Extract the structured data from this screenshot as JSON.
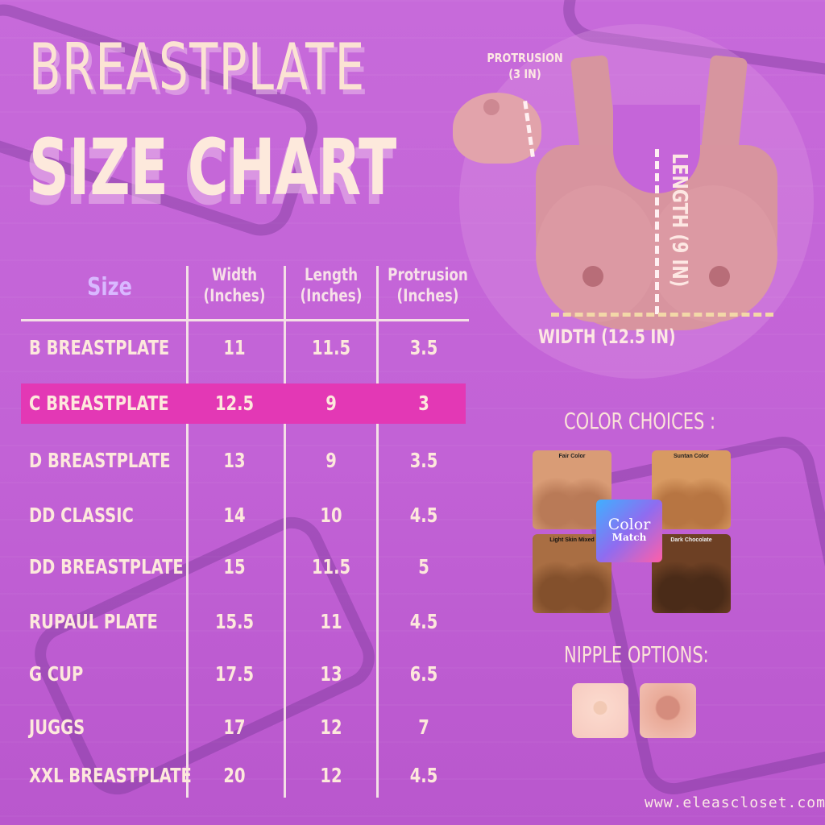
{
  "title": {
    "line1": "BREASTPLATE",
    "line2": "SIZE CHART"
  },
  "table": {
    "headers": {
      "size": "Size",
      "width": "Width (Inches)",
      "length": "Length (Inches)",
      "protrusion": "Protrusion (Inches)"
    },
    "rows": [
      {
        "name": "B BREASTPLATE",
        "width": "11",
        "length": "11.5",
        "protrusion": "3.5"
      },
      {
        "name": "C BREASTPLATE",
        "width": "12.5",
        "length": "9",
        "protrusion": "3",
        "highlight": true
      },
      {
        "name": "D BREASTPLATE",
        "width": "13",
        "length": "9",
        "protrusion": "3.5"
      },
      {
        "name": "DD CLASSIC",
        "width": "14",
        "length": "10",
        "protrusion": "4.5"
      },
      {
        "name": "DD BREASTPLATE",
        "width": "15",
        "length": "11.5",
        "protrusion": "5"
      },
      {
        "name": "RUPAUL PLATE",
        "width": "15.5",
        "length": "11",
        "protrusion": "4.5"
      },
      {
        "name": "G CUP",
        "width": "17.5",
        "length": "13",
        "protrusion": "6.5"
      },
      {
        "name": "JUGGS",
        "width": "17",
        "length": "12",
        "protrusion": "7"
      },
      {
        "name": "XXL BREASTPLATE",
        "width": "20",
        "length": "12",
        "protrusion": "4.5"
      }
    ],
    "highlight_color": "#e338b5"
  },
  "measurements": {
    "protrusion": "PROTRUSION",
    "protrusion_value": "(3 IN)",
    "length": "LENGTH (9 IN)",
    "width": "WIDTH (12.5 IN)"
  },
  "color_choices": {
    "heading": "COLOR CHOICES :",
    "swatches": [
      "Fair Color",
      "Suntan Color",
      "Light Skin Mixed",
      "Dark Chocolate"
    ],
    "color_match": {
      "line1": "Color",
      "line2": "Match"
    }
  },
  "nipple_options": {
    "heading": "NIPPLE OPTIONS:"
  },
  "website": "www.eleascloset.com",
  "colors": {
    "background": "#c565d9",
    "text": "#fde8dc",
    "accent": "#e338b5"
  }
}
